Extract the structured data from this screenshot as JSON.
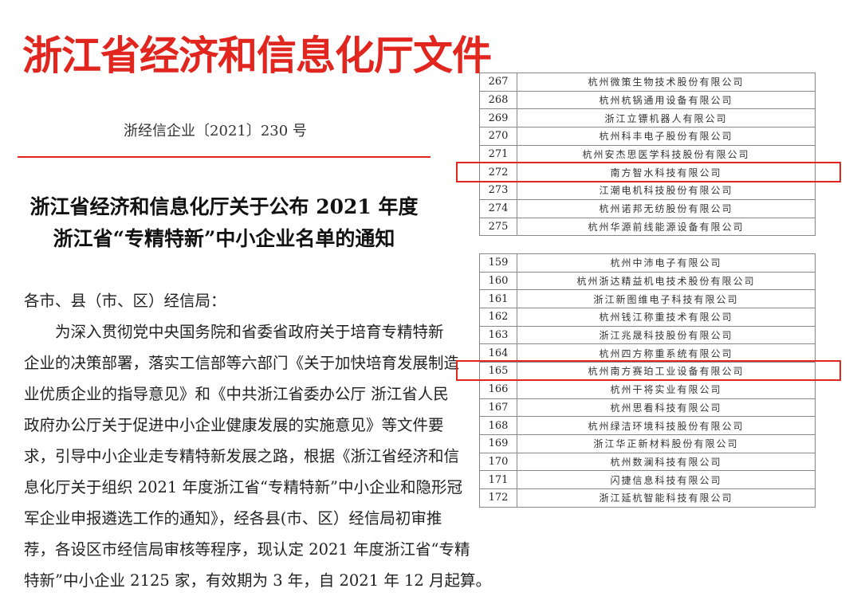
{
  "header": {
    "title": "浙江省经济和信息化厅文件",
    "doc_number": "浙经信企业〔2021〕230 号"
  },
  "heading": [
    "浙江省经济和信息化厅关于公布 2021 年度",
    "浙江省“专精特新”中小企业名单的通知"
  ],
  "body": [
    "各市、县（市、区）经信局：",
    "　　为深入贯彻党中央国务院和省委省政府关于培育专精特新",
    "企业的决策部署，落实工信部等六部门《关于加快培育发展制造",
    "业优质企业的指导意见》和《中共浙江省委办公厅 浙江省人民",
    "政府办公厅关于促进中小企业健康发展的实施意见》等文件要",
    "求，引导中小企业走专精特新发展之路，根据《浙江省经济和信",
    "息化厅关于组织 2021 年度浙江省“专精特新”中小企业和隐形冠",
    "军企业申报遴选工作的通知》，经各县(市、区）经信局初审推",
    "荐，各设区市经信局审核等程序，现认定 2021 年度浙江省“专精",
    "特新”中小企业 2125 家，有效期为 3 年，自 2021 年 12 月起算。"
  ],
  "tables": [
    {
      "highlighted": "272",
      "rows": [
        [
          "267",
          "杭州微策生物技术股份有限公司"
        ],
        [
          "268",
          "杭州杭锅通用设备有限公司"
        ],
        [
          "269",
          "浙江立镖机器人有限公司"
        ],
        [
          "270",
          "杭州科丰电子股份有限公司"
        ],
        [
          "271",
          "杭州安杰思医学科技股份有限公司"
        ],
        [
          "272",
          "南方智水科技有限公司"
        ],
        [
          "273",
          "江潮电机科技股份有限公司"
        ],
        [
          "274",
          "杭州诺邦无纺股份有限公司"
        ],
        [
          "275",
          "杭州华源前线能源设备有限公司"
        ]
      ]
    },
    {
      "highlighted": "165",
      "rows": [
        [
          "159",
          "杭州中沛电子有限公司"
        ],
        [
          "160",
          "杭州浙达精益机电技术股份有限公司"
        ],
        [
          "161",
          "浙江新图维电子科技有限公司"
        ],
        [
          "162",
          "杭州钱江称重技术有限公司"
        ],
        [
          "163",
          "浙江兆晟科技股份有限公司"
        ],
        [
          "164",
          "杭州四方称重系统有限公司"
        ],
        [
          "165",
          "杭州南方赛珀工业设备有限公司"
        ],
        [
          "166",
          "杭州干将实业有限公司"
        ],
        [
          "167",
          "杭州思看科技有限公司"
        ],
        [
          "168",
          "杭州绿洁环境科技股份有限公司"
        ],
        [
          "169",
          "浙江华正新材料股份有限公司"
        ],
        [
          "170",
          "杭州数澜科技有限公司"
        ],
        [
          "171",
          "闪捷信息科技有限公司"
        ],
        [
          "172",
          "浙江延杭智能科技有限公司"
        ]
      ]
    }
  ],
  "colors": {
    "accent": "#e0261f"
  }
}
